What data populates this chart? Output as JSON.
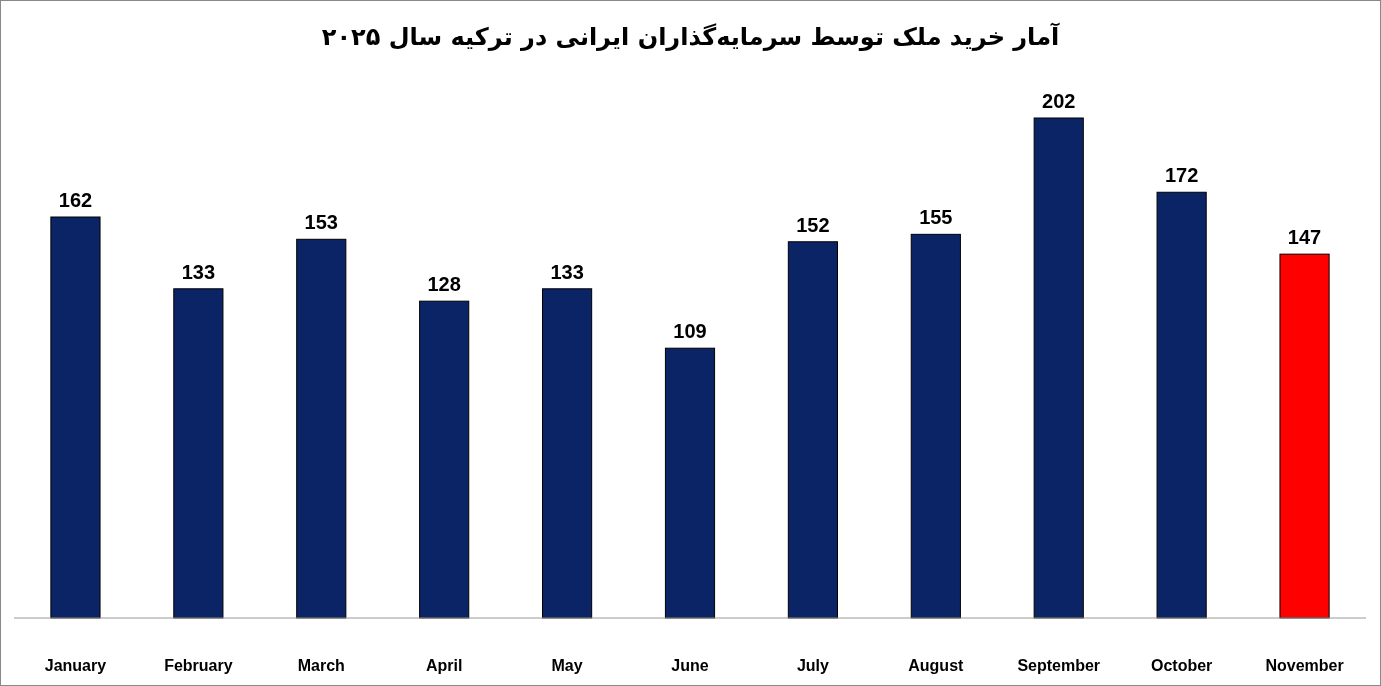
{
  "chart_data": {
    "type": "bar",
    "title": "آمار خرید ملک توسط سرمایه‌گذاران ایرانی در ترکیه سال ۲۰۲۵",
    "categories": [
      "January",
      "February",
      "March",
      "April",
      "May",
      "June",
      "July",
      "August",
      "September",
      "October",
      "November"
    ],
    "values": [
      162,
      133,
      153,
      128,
      133,
      109,
      152,
      155,
      202,
      172,
      147
    ],
    "colors": [
      "#0b2466",
      "#0b2466",
      "#0b2466",
      "#0b2466",
      "#0b2466",
      "#0b2466",
      "#0b2466",
      "#0b2466",
      "#0b2466",
      "#0b2466",
      "#ff0000"
    ],
    "data_labels": true
  }
}
